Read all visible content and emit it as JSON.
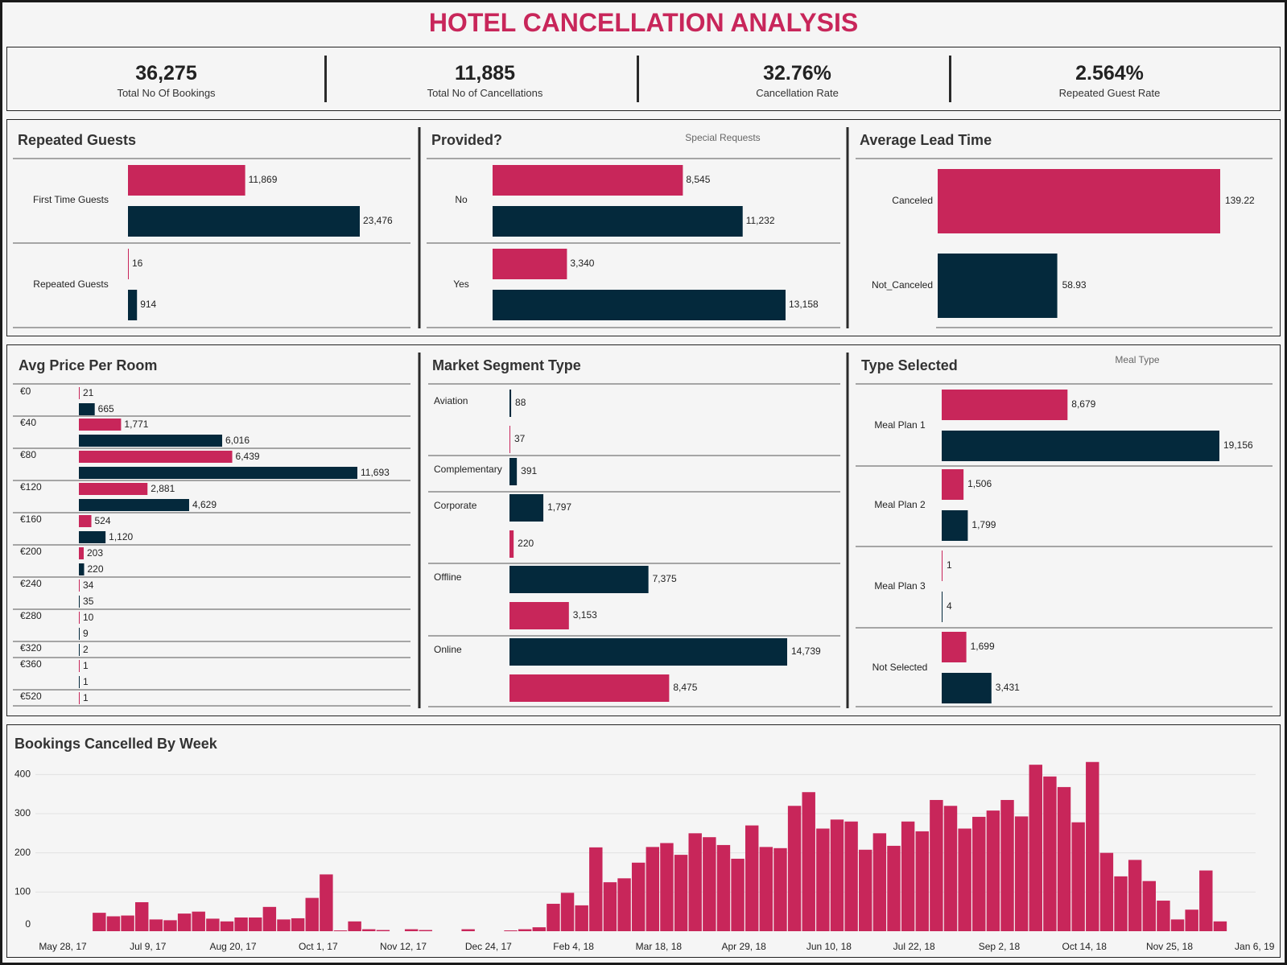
{
  "title": "HOTEL CANCELLATION ANALYSIS",
  "colors": {
    "canceled": "#c8265a",
    "not_canceled": "#04293c",
    "title": "#c8265a"
  },
  "kpis": [
    {
      "value": "36,275",
      "label": "Total No Of Bookings"
    },
    {
      "value": "11,885",
      "label": "Total No of Cancellations"
    },
    {
      "value": "32.76%",
      "label": "Cancellation Rate"
    },
    {
      "value": "2.564%",
      "label": "Repeated Guest Rate"
    }
  ],
  "chart_data": [
    {
      "type": "bar",
      "orientation": "horizontal",
      "title": "Repeated Guests",
      "categories": [
        "First Time Guests",
        "Repeated Guests"
      ],
      "series": [
        {
          "values": [
            11869,
            16
          ],
          "labels": [
            "11,869",
            "16"
          ],
          "color": "#c8265a"
        },
        {
          "values": [
            23476,
            914
          ],
          "labels": [
            "23,476",
            "914"
          ],
          "color": "#04293c"
        }
      ]
    },
    {
      "type": "bar",
      "orientation": "horizontal",
      "title": "Provided?",
      "subtitle": "Special Requests",
      "categories": [
        "No",
        "Yes"
      ],
      "series": [
        {
          "values": [
            8545,
            3340
          ],
          "labels": [
            "8,545",
            "3,340"
          ],
          "color": "#c8265a"
        },
        {
          "values": [
            11232,
            13158
          ],
          "labels": [
            "11,232",
            "13,158"
          ],
          "color": "#04293c"
        }
      ]
    },
    {
      "type": "bar",
      "orientation": "horizontal",
      "title": "Average Lead Time",
      "categories": [
        "Canceled",
        "Not_Canceled"
      ],
      "values": [
        139.22,
        58.93
      ],
      "labels": [
        "139.22",
        "58.93"
      ],
      "colors": [
        "#c8265a",
        "#04293c"
      ]
    },
    {
      "type": "bar",
      "orientation": "horizontal",
      "title": "Avg Price Per Room",
      "groups": [
        {
          "category": "€0",
          "bars": [
            {
              "value": 21,
              "label": "21",
              "color": "#c8265a"
            },
            {
              "value": 665,
              "label": "665",
              "color": "#04293c"
            }
          ]
        },
        {
          "category": "€40",
          "bars": [
            {
              "value": 1771,
              "label": "1,771",
              "color": "#c8265a"
            },
            {
              "value": 6016,
              "label": "6,016",
              "color": "#04293c"
            }
          ]
        },
        {
          "category": "€80",
          "bars": [
            {
              "value": 6439,
              "label": "6,439",
              "color": "#c8265a"
            },
            {
              "value": 11693,
              "label": "11,693",
              "color": "#04293c"
            }
          ]
        },
        {
          "category": "€120",
          "bars": [
            {
              "value": 2881,
              "label": "2,881",
              "color": "#c8265a"
            },
            {
              "value": 4629,
              "label": "4,629",
              "color": "#04293c"
            }
          ]
        },
        {
          "category": "€160",
          "bars": [
            {
              "value": 524,
              "label": "524",
              "color": "#c8265a"
            },
            {
              "value": 1120,
              "label": "1,120",
              "color": "#04293c"
            }
          ]
        },
        {
          "category": "€200",
          "bars": [
            {
              "value": 203,
              "label": "203",
              "color": "#c8265a"
            },
            {
              "value": 220,
              "label": "220",
              "color": "#04293c"
            }
          ]
        },
        {
          "category": "€240",
          "bars": [
            {
              "value": 34,
              "label": "34",
              "color": "#c8265a"
            },
            {
              "value": 35,
              "label": "35",
              "color": "#04293c"
            }
          ]
        },
        {
          "category": "€280",
          "bars": [
            {
              "value": 10,
              "label": "10",
              "color": "#c8265a"
            },
            {
              "value": 9,
              "label": "9",
              "color": "#04293c"
            }
          ]
        },
        {
          "category": "€320",
          "bars": [
            {
              "value": 2,
              "label": "2",
              "color": "#04293c"
            }
          ]
        },
        {
          "category": "€360",
          "bars": [
            {
              "value": 1,
              "label": "1",
              "color": "#c8265a"
            },
            {
              "value": 1,
              "label": "1",
              "color": "#04293c"
            }
          ]
        },
        {
          "category": "€520",
          "bars": [
            {
              "value": 1,
              "label": "1",
              "color": "#c8265a"
            }
          ]
        }
      ]
    },
    {
      "type": "bar",
      "orientation": "horizontal",
      "title": "Market Segment Type",
      "groups": [
        {
          "category": "Aviation",
          "bars": [
            {
              "value": 88,
              "label": "88",
              "color": "#04293c"
            },
            {
              "value": 37,
              "label": "37",
              "color": "#c8265a"
            }
          ]
        },
        {
          "category": "Complementary",
          "bars": [
            {
              "value": 391,
              "label": "391",
              "color": "#04293c"
            }
          ]
        },
        {
          "category": "Corporate",
          "bars": [
            {
              "value": 1797,
              "label": "1,797",
              "color": "#04293c"
            },
            {
              "value": 220,
              "label": "220",
              "color": "#c8265a"
            }
          ]
        },
        {
          "category": "Offline",
          "bars": [
            {
              "value": 7375,
              "label": "7,375",
              "color": "#04293c"
            },
            {
              "value": 3153,
              "label": "3,153",
              "color": "#c8265a"
            }
          ]
        },
        {
          "category": "Online",
          "bars": [
            {
              "value": 14739,
              "label": "14,739",
              "color": "#04293c"
            },
            {
              "value": 8475,
              "label": "8,475",
              "color": "#c8265a"
            }
          ]
        }
      ]
    },
    {
      "type": "bar",
      "orientation": "horizontal",
      "title": "Type Selected",
      "subtitle": "Meal Type",
      "groups": [
        {
          "category": "Meal Plan 1",
          "bars": [
            {
              "value": 8679,
              "label": "8,679",
              "color": "#c8265a"
            },
            {
              "value": 19156,
              "label": "19,156",
              "color": "#04293c"
            }
          ]
        },
        {
          "category": "Meal Plan 2",
          "bars": [
            {
              "value": 1506,
              "label": "1,506",
              "color": "#c8265a"
            },
            {
              "value": 1799,
              "label": "1,799",
              "color": "#04293c"
            }
          ]
        },
        {
          "category": "Meal Plan 3",
          "bars": [
            {
              "value": 1,
              "label": "1",
              "color": "#c8265a"
            },
            {
              "value": 4,
              "label": "4",
              "color": "#04293c"
            }
          ]
        },
        {
          "category": "Not Selected",
          "bars": [
            {
              "value": 1699,
              "label": "1,699",
              "color": "#c8265a"
            },
            {
              "value": 3431,
              "label": "3,431",
              "color": "#04293c"
            }
          ]
        }
      ]
    },
    {
      "type": "bar",
      "title": "Bookings Cancelled By Week",
      "ylim": [
        0,
        450
      ],
      "yticks": [
        0,
        100,
        200,
        300,
        400
      ],
      "grid": true,
      "x_tick_labels": [
        "May 28, 17",
        "Jul 9, 17",
        "Aug 20, 17",
        "Oct 1, 17",
        "Nov 12, 17",
        "Dec 24, 17",
        "Feb 4, 18",
        "Mar 18, 18",
        "Apr 29, 18",
        "Jun 10, 18",
        "Jul 22, 18",
        "Sep 2, 18",
        "Oct 14, 18",
        "Nov 25, 18",
        "Jan 6, 19"
      ],
      "values": [
        0,
        0,
        0,
        0,
        47,
        38,
        40,
        74,
        30,
        28,
        45,
        50,
        32,
        25,
        35,
        35,
        62,
        30,
        33,
        85,
        145,
        2,
        25,
        5,
        3,
        0,
        5,
        3,
        0,
        0,
        5,
        0,
        0,
        2,
        5,
        10,
        70,
        98,
        66,
        214,
        125,
        135,
        175,
        215,
        225,
        195,
        250,
        240,
        220,
        185,
        270,
        215,
        212,
        320,
        355,
        262,
        285,
        280,
        208,
        250,
        218,
        280,
        255,
        335,
        320,
        262,
        292,
        308,
        335,
        293,
        425,
        395,
        368,
        278,
        432,
        200,
        140,
        182,
        128,
        78,
        30,
        55,
        155,
        25,
        0,
        0
      ]
    }
  ]
}
